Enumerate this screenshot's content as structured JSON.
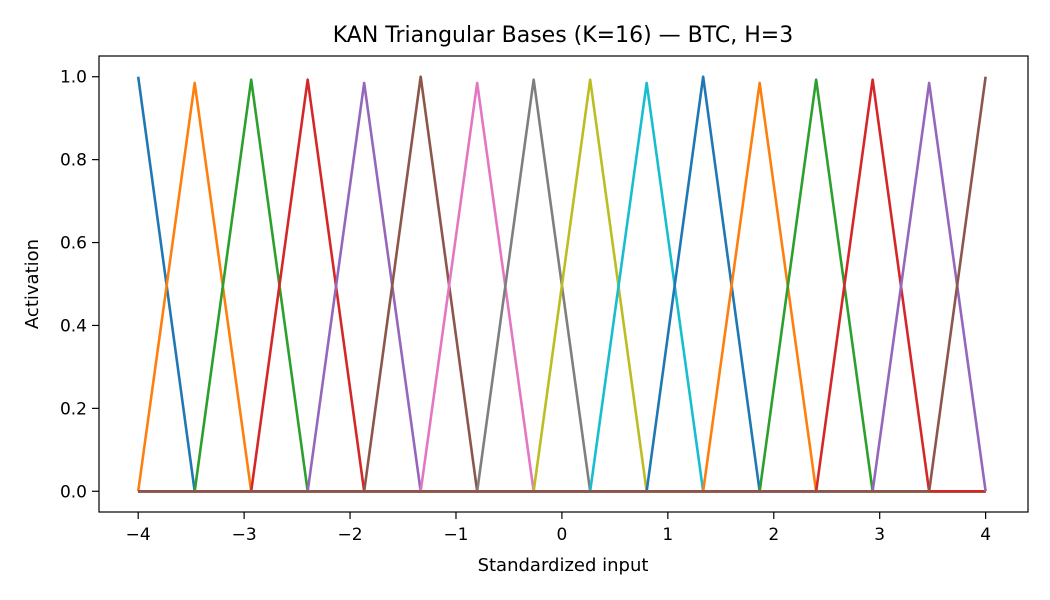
{
  "chart_data": {
    "type": "line",
    "title": "KAN Triangular Bases (K=16) — BTC, H=3",
    "xlabel": "Standardized input",
    "ylabel": "Activation",
    "xlim": [
      -4.37,
      4.4
    ],
    "ylim": [
      -0.05,
      1.05
    ],
    "xticks": [
      -4,
      -3,
      -2,
      -1,
      0,
      1,
      2,
      3,
      4
    ],
    "xtick_labels": [
      "−4",
      "−3",
      "−2",
      "−1",
      "0",
      "1",
      "2",
      "3",
      "4"
    ],
    "yticks": [
      0.0,
      0.2,
      0.4,
      0.6,
      0.8,
      1.0
    ],
    "ytick_labels": [
      "0.0",
      "0.2",
      "0.4",
      "0.6",
      "0.8",
      "1.0"
    ],
    "grid": false,
    "legend": "none",
    "x_domain": [
      -4,
      4
    ],
    "centers": [
      -4.0,
      -3.4667,
      -2.9333,
      -2.4,
      -1.8667,
      -1.3333,
      -0.8,
      -0.2667,
      0.2667,
      0.8,
      1.3333,
      1.8667,
      2.4,
      2.9333,
      3.4667,
      4.0
    ],
    "peaks": [
      1.0,
      0.985,
      0.993,
      0.993,
      0.985,
      1.0,
      0.985,
      0.993,
      0.993,
      0.985,
      1.0,
      0.985,
      0.993,
      0.993,
      0.985,
      1.0
    ],
    "colors": [
      "#1f77b4",
      "#ff7f0e",
      "#2ca02c",
      "#d62728",
      "#9467bd",
      "#8c564b",
      "#e377c2",
      "#7f7f7f",
      "#bcbd22",
      "#17becf",
      "#1f77b4",
      "#ff7f0e",
      "#2ca02c",
      "#d62728",
      "#9467bd",
      "#8c564b"
    ]
  }
}
